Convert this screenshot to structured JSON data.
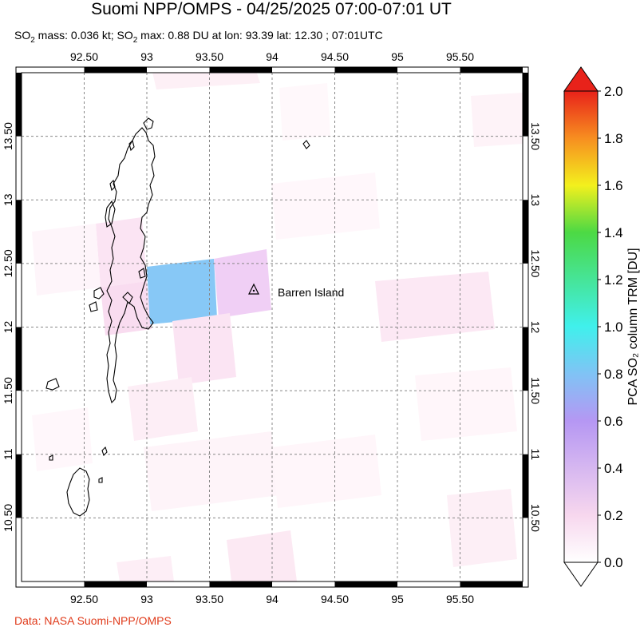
{
  "header": {
    "title": "Suomi NPP/OMPS - 04/25/2025 07:00-07:01 UT",
    "so2_mass_label": "SO",
    "so2_mass_value": " mass: 0.036 kt; SO",
    "so2_max_value": " max: 0.88 DU at lon: 93.39 lat: 12.30 ; 07:01UTC"
  },
  "map": {
    "lon_range": [
      92.0,
      96.0
    ],
    "lat_range": [
      10.0,
      14.0
    ],
    "lon_ticks": [
      {
        "value": 92.5,
        "label": "92.50"
      },
      {
        "value": 93.0,
        "label": "93"
      },
      {
        "value": 93.5,
        "label": "93.50"
      },
      {
        "value": 94.0,
        "label": "94"
      },
      {
        "value": 94.5,
        "label": "94.50"
      },
      {
        "value": 95.0,
        "label": "95"
      },
      {
        "value": 95.5,
        "label": "95.50"
      }
    ],
    "lat_ticks": [
      {
        "value": 13.5,
        "label": "13.50"
      },
      {
        "value": 13.0,
        "label": "13"
      },
      {
        "value": 12.5,
        "label": "12.50"
      },
      {
        "value": 12.0,
        "label": "12"
      },
      {
        "value": 11.5,
        "label": "11.50"
      },
      {
        "value": 11.0,
        "label": "11"
      },
      {
        "value": 10.5,
        "label": "10.50"
      }
    ],
    "volcano": {
      "name": "Barren Island",
      "lon": 93.86,
      "lat": 12.28
    }
  },
  "colorbar": {
    "label": "PCA SO₂ column TRM [DU]",
    "min": 0.0,
    "max": 2.0,
    "ticks": [
      "0.0",
      "0.2",
      "0.4",
      "0.6",
      "0.8",
      "1.0",
      "1.2",
      "1.4",
      "1.6",
      "1.8",
      "2.0"
    ]
  },
  "footer": {
    "credit": "Data: NASA Suomi-NPP/OMPS"
  }
}
